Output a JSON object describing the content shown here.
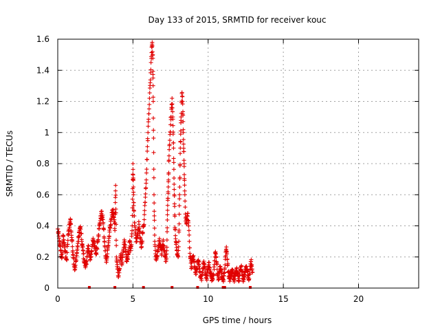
{
  "chart_data": {
    "type": "scatter",
    "title": "Day 133 of 2015, SRMTID for receiver kouc",
    "xlabel": "GPS time / hours",
    "ylabel": "SRMTID / TECUs",
    "xlim": [
      0,
      24
    ],
    "ylim": [
      0,
      1.6
    ],
    "x_ticks": [
      0,
      5,
      10,
      15,
      20
    ],
    "x_tick_labels": [
      "0",
      "5",
      "10",
      "15",
      "20"
    ],
    "y_ticks": [
      0,
      0.2,
      0.4,
      0.6,
      0.8,
      1.0,
      1.2,
      1.4,
      1.6
    ],
    "y_tick_labels": [
      "0",
      "0.2",
      "0.4",
      "0.6",
      "0.8",
      "1",
      "1.2",
      "1.4",
      "1.6"
    ],
    "grid": true,
    "marker": "+",
    "marker_color": "#e00000",
    "series": [
      {
        "name": "SRMTID",
        "points": [
          [
            0.0,
            0.38
          ],
          [
            0.05,
            0.35
          ],
          [
            0.1,
            0.3
          ],
          [
            0.15,
            0.27
          ],
          [
            0.2,
            0.24
          ],
          [
            0.25,
            0.2
          ],
          [
            0.3,
            0.22
          ],
          [
            0.35,
            0.34
          ],
          [
            0.4,
            0.31
          ],
          [
            0.45,
            0.26
          ],
          [
            0.5,
            0.23
          ],
          [
            0.55,
            0.2
          ],
          [
            0.6,
            0.18
          ],
          [
            0.65,
            0.28
          ],
          [
            0.7,
            0.34
          ],
          [
            0.75,
            0.38
          ],
          [
            0.8,
            0.42
          ],
          [
            0.85,
            0.44
          ],
          [
            0.9,
            0.36
          ],
          [
            0.95,
            0.3
          ],
          [
            1.0,
            0.24
          ],
          [
            1.05,
            0.19
          ],
          [
            1.1,
            0.14
          ],
          [
            1.15,
            0.12
          ],
          [
            1.2,
            0.17
          ],
          [
            1.25,
            0.21
          ],
          [
            1.3,
            0.25
          ],
          [
            1.35,
            0.3
          ],
          [
            1.4,
            0.33
          ],
          [
            1.45,
            0.37
          ],
          [
            1.5,
            0.39
          ],
          [
            1.55,
            0.35
          ],
          [
            1.6,
            0.3
          ],
          [
            1.65,
            0.26
          ],
          [
            1.7,
            0.22
          ],
          [
            1.75,
            0.18
          ],
          [
            1.8,
            0.16
          ],
          [
            1.85,
            0.14
          ],
          [
            1.9,
            0.17
          ],
          [
            1.95,
            0.2
          ],
          [
            2.0,
            0.24
          ],
          [
            2.05,
            0.27
          ],
          [
            2.1,
            0.22
          ],
          [
            2.15,
            0.18
          ],
          [
            2.2,
            0.2
          ],
          [
            2.25,
            0.24
          ],
          [
            2.3,
            0.28
          ],
          [
            2.35,
            0.32
          ],
          [
            2.4,
            0.3
          ],
          [
            2.45,
            0.27
          ],
          [
            2.5,
            0.24
          ],
          [
            2.55,
            0.22
          ],
          [
            2.6,
            0.25
          ],
          [
            2.65,
            0.3
          ],
          [
            2.7,
            0.34
          ],
          [
            2.75,
            0.38
          ],
          [
            2.8,
            0.42
          ],
          [
            2.85,
            0.45
          ],
          [
            2.9,
            0.48
          ],
          [
            2.95,
            0.46
          ],
          [
            3.0,
            0.44
          ],
          [
            3.05,
            0.38
          ],
          [
            3.1,
            0.3
          ],
          [
            3.15,
            0.24
          ],
          [
            3.2,
            0.2
          ],
          [
            3.25,
            0.18
          ],
          [
            3.3,
            0.22
          ],
          [
            3.35,
            0.27
          ],
          [
            3.4,
            0.32
          ],
          [
            3.45,
            0.36
          ],
          [
            3.5,
            0.4
          ],
          [
            3.55,
            0.44
          ],
          [
            3.6,
            0.47
          ],
          [
            3.65,
            0.5
          ],
          [
            3.7,
            0.48
          ],
          [
            3.75,
            0.43
          ],
          [
            3.8,
            0.37
          ],
          [
            3.85,
            0.66
          ],
          [
            3.9,
            0.2
          ],
          [
            3.95,
            0.14
          ],
          [
            4.0,
            0.1
          ],
          [
            4.05,
            0.08
          ],
          [
            4.1,
            0.12
          ],
          [
            4.15,
            0.18
          ],
          [
            4.2,
            0.22
          ],
          [
            4.25,
            0.15
          ],
          [
            4.3,
            0.2
          ],
          [
            4.35,
            0.24
          ],
          [
            4.4,
            0.28
          ],
          [
            4.45,
            0.3
          ],
          [
            4.5,
            0.25
          ],
          [
            4.55,
            0.2
          ],
          [
            4.6,
            0.17
          ],
          [
            4.65,
            0.2
          ],
          [
            4.7,
            0.22
          ],
          [
            4.75,
            0.26
          ],
          [
            4.8,
            0.3
          ],
          [
            4.85,
            0.24
          ],
          [
            4.9,
            0.28
          ],
          [
            4.95,
            0.4
          ],
          [
            5.0,
            0.8
          ],
          [
            5.02,
            0.7
          ],
          [
            5.04,
            0.6
          ],
          [
            5.06,
            0.5
          ],
          [
            5.1,
            0.42
          ],
          [
            5.15,
            0.36
          ],
          [
            5.2,
            0.32
          ],
          [
            5.25,
            0.3
          ],
          [
            5.3,
            0.34
          ],
          [
            5.35,
            0.38
          ],
          [
            5.4,
            0.41
          ],
          [
            5.45,
            0.36
          ],
          [
            5.5,
            0.3
          ],
          [
            5.55,
            0.26
          ],
          [
            5.6,
            0.3
          ],
          [
            5.65,
            0.35
          ],
          [
            5.7,
            0.4
          ],
          [
            5.75,
            0.44
          ],
          [
            5.8,
            0.55
          ],
          [
            5.85,
            0.64
          ],
          [
            5.9,
            0.74
          ],
          [
            5.95,
            0.88
          ],
          [
            6.0,
            1.0
          ],
          [
            6.05,
            1.12
          ],
          [
            6.1,
            1.22
          ],
          [
            6.15,
            1.32
          ],
          [
            6.2,
            1.45
          ],
          [
            6.25,
            1.55
          ],
          [
            6.28,
            1.58
          ],
          [
            6.32,
            1.5
          ],
          [
            6.35,
            1.2
          ],
          [
            6.4,
            0.6
          ],
          [
            6.45,
            0.3
          ],
          [
            6.5,
            0.22
          ],
          [
            6.55,
            0.18
          ],
          [
            6.6,
            0.2
          ],
          [
            6.65,
            0.24
          ],
          [
            6.7,
            0.26
          ],
          [
            6.75,
            0.3
          ],
          [
            6.8,
            0.28
          ],
          [
            6.85,
            0.25
          ],
          [
            6.9,
            0.22
          ],
          [
            6.95,
            0.26
          ],
          [
            7.0,
            0.3
          ],
          [
            7.05,
            0.27
          ],
          [
            7.1,
            0.24
          ],
          [
            7.15,
            0.2
          ],
          [
            7.2,
            0.17
          ],
          [
            7.25,
            0.24
          ],
          [
            7.3,
            0.5
          ],
          [
            7.35,
            0.65
          ],
          [
            7.4,
            0.85
          ],
          [
            7.45,
            0.95
          ],
          [
            7.5,
            1.05
          ],
          [
            7.55,
            1.15
          ],
          [
            7.6,
            1.22
          ],
          [
            7.65,
            1.1
          ],
          [
            7.7,
            0.9
          ],
          [
            7.75,
            0.6
          ],
          [
            7.8,
            0.38
          ],
          [
            7.85,
            0.3
          ],
          [
            7.9,
            0.26
          ],
          [
            7.95,
            0.22
          ],
          [
            8.0,
            0.2
          ],
          [
            8.05,
            0.3
          ],
          [
            8.1,
            0.6
          ],
          [
            8.15,
            0.9
          ],
          [
            8.2,
            1.1
          ],
          [
            8.25,
            1.25
          ],
          [
            8.3,
            1.2
          ],
          [
            8.35,
            1.0
          ],
          [
            8.4,
            0.8
          ],
          [
            8.45,
            0.6
          ],
          [
            8.5,
            0.45
          ],
          [
            8.55,
            0.42
          ],
          [
            8.6,
            0.44
          ],
          [
            8.65,
            0.48
          ],
          [
            8.7,
            0.4
          ],
          [
            8.75,
            0.3
          ],
          [
            8.8,
            0.2
          ],
          [
            8.85,
            0.16
          ],
          [
            8.9,
            0.14
          ],
          [
            8.95,
            0.18
          ],
          [
            9.0,
            0.2
          ],
          [
            9.05,
            0.17
          ],
          [
            9.1,
            0.14
          ],
          [
            9.15,
            0.1
          ],
          [
            9.2,
            0.09
          ],
          [
            9.25,
            0.12
          ],
          [
            9.3,
            0.16
          ],
          [
            9.35,
            0.18
          ],
          [
            9.4,
            0.14
          ],
          [
            9.45,
            0.1
          ],
          [
            9.5,
            0.08
          ],
          [
            9.55,
            0.06
          ],
          [
            9.6,
            0.1
          ],
          [
            9.65,
            0.13
          ],
          [
            9.7,
            0.16
          ],
          [
            9.75,
            0.14
          ],
          [
            9.8,
            0.11
          ],
          [
            9.85,
            0.08
          ],
          [
            9.9,
            0.06
          ],
          [
            9.95,
            0.1
          ],
          [
            10.0,
            0.12
          ],
          [
            10.05,
            0.15
          ],
          [
            10.1,
            0.13
          ],
          [
            10.15,
            0.1
          ],
          [
            10.2,
            0.08
          ],
          [
            10.25,
            0.05
          ],
          [
            10.3,
            0.06
          ],
          [
            10.35,
            0.09
          ],
          [
            10.4,
            0.12
          ],
          [
            10.45,
            0.2
          ],
          [
            10.5,
            0.22
          ],
          [
            10.55,
            0.17
          ],
          [
            10.6,
            0.12
          ],
          [
            10.65,
            0.09
          ],
          [
            10.7,
            0.06
          ],
          [
            10.75,
            0.1
          ],
          [
            10.8,
            0.14
          ],
          [
            10.85,
            0.12
          ],
          [
            10.9,
            0.09
          ],
          [
            10.95,
            0.06
          ],
          [
            11.0,
            0.05
          ],
          [
            11.05,
            0.08
          ],
          [
            11.1,
            0.12
          ],
          [
            11.15,
            0.2
          ],
          [
            11.2,
            0.25
          ],
          [
            11.25,
            0.22
          ],
          [
            11.3,
            0.15
          ],
          [
            11.35,
            0.1
          ],
          [
            11.4,
            0.08
          ],
          [
            11.45,
            0.06
          ],
          [
            11.5,
            0.08
          ],
          [
            11.55,
            0.1
          ],
          [
            11.6,
            0.12
          ],
          [
            11.65,
            0.09
          ],
          [
            11.7,
            0.07
          ],
          [
            11.75,
            0.05
          ],
          [
            11.8,
            0.08
          ],
          [
            11.85,
            0.1
          ],
          [
            11.9,
            0.13
          ],
          [
            11.95,
            0.1
          ],
          [
            12.0,
            0.08
          ],
          [
            12.05,
            0.06
          ],
          [
            12.1,
            0.09
          ],
          [
            12.15,
            0.12
          ],
          [
            12.2,
            0.14
          ],
          [
            12.25,
            0.11
          ],
          [
            12.3,
            0.08
          ],
          [
            12.35,
            0.06
          ],
          [
            12.4,
            0.08
          ],
          [
            12.45,
            0.1
          ],
          [
            12.5,
            0.12
          ],
          [
            12.55,
            0.14
          ],
          [
            12.6,
            0.11
          ],
          [
            12.65,
            0.08
          ],
          [
            12.7,
            0.05
          ],
          [
            12.75,
            0.09
          ],
          [
            12.8,
            0.14
          ],
          [
            12.85,
            0.17
          ],
          [
            12.9,
            0.15
          ],
          [
            12.95,
            0.1
          ]
        ],
        "zero_points": [
          2.1,
          3.8,
          5.7,
          7.6,
          9.3,
          11.0,
          11.1,
          12.8
        ]
      }
    ]
  }
}
